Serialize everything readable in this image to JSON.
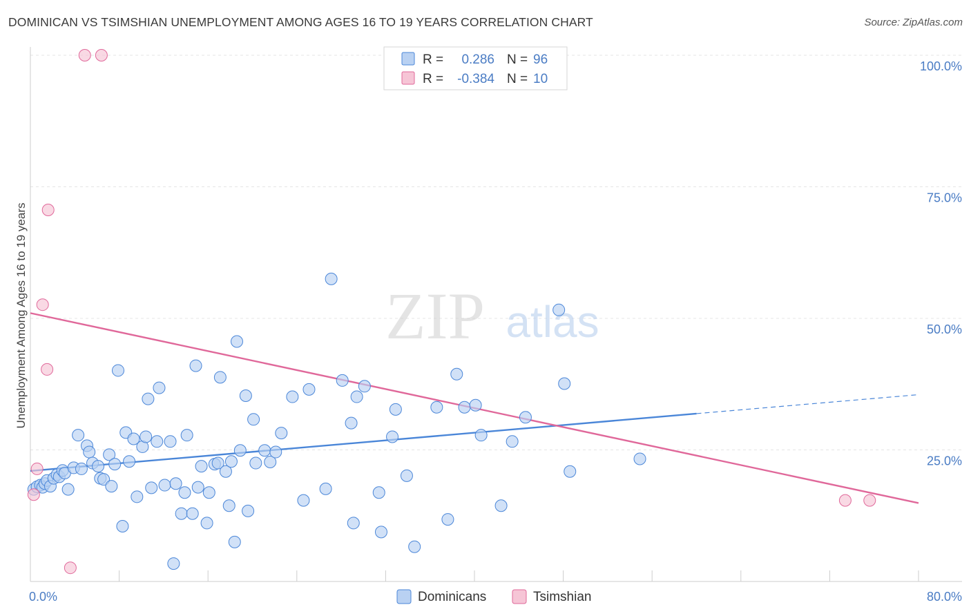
{
  "title": "DOMINICAN VS TSIMSHIAN UNEMPLOYMENT AMONG AGES 16 TO 19 YEARS CORRELATION CHART",
  "source": "Source: ZipAtlas.com",
  "watermark": {
    "zip": "ZIP",
    "atlas": "atlas"
  },
  "colors": {
    "dominicans": "#4a86d8",
    "dominicans_fill": "#b9d1f2",
    "tsimshian": "#e0689a",
    "tsimshian_fill": "#f6c5d6",
    "axis_label": "#4a7cc4",
    "grid": "#e4e4e4"
  },
  "legend_top": {
    "rows": [
      {
        "r_label": "R = ",
        "r_value": "0.286",
        "n_label": "N = ",
        "n_value": "96"
      },
      {
        "r_label": "R = ",
        "r_value": "-0.384",
        "n_label": "N = ",
        "n_value": "10"
      }
    ]
  },
  "legend_bottom": [
    "Dominicans",
    "Tsimshian"
  ],
  "chart_data": {
    "type": "scatter",
    "title": "DOMINICAN VS TSIMSHIAN UNEMPLOYMENT AMONG AGES 16 TO 19 YEARS CORRELATION CHART",
    "xlabel": "",
    "ylabel": "Unemployment Among Ages 16 to 19 years",
    "xlim": [
      0,
      80
    ],
    "ylim": [
      0,
      100
    ],
    "x_tick_labels": [
      "0.0%",
      "80.0%"
    ],
    "y_ticks": [
      25,
      50,
      75,
      100
    ],
    "y_tick_labels": [
      "25.0%",
      "50.0%",
      "75.0%",
      "100.0%"
    ],
    "grid": true,
    "legend_position": "top-center",
    "series": [
      {
        "name": "Dominicans",
        "R": 0.286,
        "N": 96,
        "trend": {
          "x0": 0,
          "y0": 21.0,
          "x1": 60,
          "y1": 31.9,
          "dashed_to_x": 80,
          "dashed_to_y": 35.5
        },
        "points": [
          [
            0.3,
            17.5
          ],
          [
            0.6,
            18
          ],
          [
            0.9,
            18.3
          ],
          [
            1.1,
            17.9
          ],
          [
            1.3,
            18.6
          ],
          [
            1.5,
            19.2
          ],
          [
            1.8,
            18.1
          ],
          [
            2.1,
            19.6
          ],
          [
            2.4,
            20.3
          ],
          [
            2.6,
            19.9
          ],
          [
            2.9,
            21.1
          ],
          [
            3.1,
            20.6
          ],
          [
            3.4,
            17.5
          ],
          [
            3.9,
            21.6
          ],
          [
            4.3,
            27.8
          ],
          [
            4.6,
            21.4
          ],
          [
            5.1,
            25.8
          ],
          [
            5.3,
            24.6
          ],
          [
            5.6,
            22.5
          ],
          [
            6.1,
            21.9
          ],
          [
            6.3,
            19.6
          ],
          [
            6.6,
            19.4
          ],
          [
            7.1,
            24.1
          ],
          [
            7.3,
            18.1
          ],
          [
            7.6,
            22.3
          ],
          [
            7.9,
            40.1
          ],
          [
            8.3,
            10.5
          ],
          [
            8.6,
            28.3
          ],
          [
            8.9,
            22.8
          ],
          [
            9.3,
            27.1
          ],
          [
            9.6,
            16.1
          ],
          [
            10.1,
            25.6
          ],
          [
            10.4,
            27.5
          ],
          [
            10.6,
            34.7
          ],
          [
            10.9,
            17.8
          ],
          [
            11.4,
            26.6
          ],
          [
            11.6,
            36.8
          ],
          [
            12.1,
            18.3
          ],
          [
            12.6,
            26.6
          ],
          [
            12.9,
            3.4
          ],
          [
            13.1,
            18.6
          ],
          [
            13.6,
            12.9
          ],
          [
            13.9,
            16.9
          ],
          [
            14.1,
            27.8
          ],
          [
            14.6,
            12.9
          ],
          [
            14.9,
            41
          ],
          [
            15.1,
            17.9
          ],
          [
            15.4,
            21.9
          ],
          [
            15.9,
            11.1
          ],
          [
            16.1,
            16.9
          ],
          [
            16.6,
            22.3
          ],
          [
            16.9,
            22.5
          ],
          [
            17.1,
            38.8
          ],
          [
            17.6,
            20.9
          ],
          [
            17.9,
            14.4
          ],
          [
            18.1,
            22.8
          ],
          [
            18.4,
            7.5
          ],
          [
            18.6,
            45.6
          ],
          [
            18.9,
            24.9
          ],
          [
            19.4,
            35.3
          ],
          [
            19.6,
            13.4
          ],
          [
            20.1,
            30.8
          ],
          [
            20.3,
            22.5
          ],
          [
            21.1,
            24.9
          ],
          [
            21.6,
            22.7
          ],
          [
            22.1,
            24.6
          ],
          [
            22.6,
            28.2
          ],
          [
            23.6,
            35.1
          ],
          [
            24.6,
            15.4
          ],
          [
            25.1,
            36.5
          ],
          [
            26.6,
            17.6
          ],
          [
            27.1,
            57.5
          ],
          [
            28.1,
            38.2
          ],
          [
            28.9,
            30.1
          ],
          [
            29.1,
            11.1
          ],
          [
            29.4,
            35.1
          ],
          [
            30.1,
            37.1
          ],
          [
            31.4,
            16.9
          ],
          [
            31.6,
            9.4
          ],
          [
            32.6,
            27.5
          ],
          [
            32.9,
            32.7
          ],
          [
            33.9,
            20.1
          ],
          [
            34.6,
            6.6
          ],
          [
            36.6,
            33.1
          ],
          [
            37.6,
            11.8
          ],
          [
            38.4,
            39.4
          ],
          [
            39.1,
            33.1
          ],
          [
            40.1,
            33.5
          ],
          [
            40.6,
            27.8
          ],
          [
            42.4,
            14.4
          ],
          [
            43.4,
            26.6
          ],
          [
            44.6,
            31.2
          ],
          [
            47.6,
            51.6
          ],
          [
            48.1,
            37.6
          ],
          [
            48.6,
            20.9
          ],
          [
            54.9,
            23.3
          ]
        ]
      },
      {
        "name": "Tsimshian",
        "R": -0.384,
        "N": 10,
        "trend": {
          "x0": 0,
          "y0": 51.0,
          "x1": 80,
          "y1": 14.9
        },
        "points": [
          [
            0.3,
            16.5
          ],
          [
            0.6,
            21.4
          ],
          [
            1.1,
            52.6
          ],
          [
            1.5,
            40.3
          ],
          [
            1.6,
            70.6
          ],
          [
            3.6,
            2.6
          ],
          [
            4.9,
            100
          ],
          [
            6.4,
            100
          ],
          [
            73.4,
            15.4
          ],
          [
            75.6,
            15.4
          ]
        ]
      }
    ]
  }
}
